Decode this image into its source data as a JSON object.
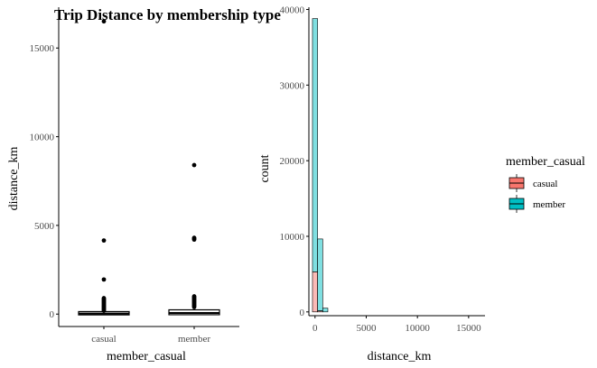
{
  "title": "Trip Distance by membership type",
  "chart_data": [
    {
      "type": "boxplot",
      "xlabel": "member_casual",
      "ylabel": "distance_km",
      "categories": [
        "casual",
        "member"
      ],
      "ylim": [
        -700,
        17300
      ],
      "yticks": [
        0,
        5000,
        10000,
        15000
      ],
      "grid": false,
      "boxes": [
        {
          "name": "casual",
          "median": 30,
          "q1": 5,
          "q3": 90,
          "whisker_low": 0,
          "whisker_high": 180,
          "outliers": [
            16500,
            4150,
            1950,
            900,
            850,
            800,
            750,
            700,
            650,
            600,
            550,
            500,
            450,
            400,
            350,
            300,
            250,
            200
          ]
        },
        {
          "name": "member",
          "median": 60,
          "q1": 15,
          "q3": 190,
          "whisker_low": 0,
          "whisker_high": 380,
          "outliers": [
            8400,
            4300,
            4250,
            4200,
            1000,
            950,
            900,
            850,
            800,
            750,
            700,
            650,
            600,
            550,
            500,
            450,
            400
          ]
        }
      ]
    },
    {
      "type": "histogram",
      "stacked": true,
      "xlabel": "distance_km",
      "ylabel": "count",
      "xlim": [
        -600,
        16600
      ],
      "ylim": [
        -500,
        40300
      ],
      "xticks": [
        0,
        5000,
        10000,
        15000
      ],
      "yticks": [
        0,
        10000,
        20000,
        30000,
        40000
      ],
      "bin_width": 500,
      "grid": false,
      "series": [
        {
          "name": "casual",
          "color": "#F8766D",
          "bins": [
            {
              "x0": -250,
              "x1": 250,
              "count": 5300
            },
            {
              "x0": 250,
              "x1": 750,
              "count": 150
            }
          ]
        },
        {
          "name": "member",
          "color": "#00BFC4",
          "bins": [
            {
              "x0": -250,
              "x1": 250,
              "count": 33500
            },
            {
              "x0": 250,
              "x1": 750,
              "count": 9500
            },
            {
              "x0": 750,
              "x1": 1250,
              "count": 500
            }
          ]
        }
      ],
      "legend": {
        "title": "member_casual",
        "position": "right",
        "entries": [
          {
            "label": "casual",
            "color": "#F8766D"
          },
          {
            "label": "member",
            "color": "#00BFC4"
          }
        ]
      }
    }
  ]
}
